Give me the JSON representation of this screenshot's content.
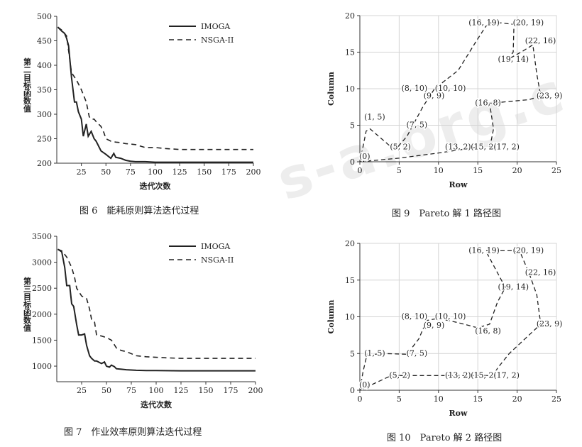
{
  "captions": {
    "fig6": "图 6　能耗原则算法迭代过程",
    "fig7": "图 7　作业效率原则算法迭代过程",
    "fig9": "图 9　Pareto 解 1 路径图",
    "fig10": "图 10　Pareto 解 2 路径图"
  },
  "watermark": "s-a.org.c",
  "colors": {
    "line": "#222222",
    "grid": "#d4d4d4",
    "axis": "#333333"
  },
  "chart_data": [
    {
      "id": "fig6",
      "type": "line",
      "xlabel": "迭代次数",
      "ylabel": "第二目标函数值",
      "xlim": [
        0,
        200
      ],
      "ylim": [
        200,
        500
      ],
      "xticks": [
        25,
        50,
        75,
        100,
        125,
        150,
        175,
        200
      ],
      "yticks": [
        200,
        250,
        300,
        350,
        400,
        450,
        500
      ],
      "grid": false,
      "legend_position": "top-right",
      "series": [
        {
          "name": "IMOGA",
          "style": "solid",
          "x": [
            1,
            5,
            8,
            10,
            12,
            15,
            18,
            20,
            22,
            25,
            27,
            30,
            32,
            35,
            38,
            40,
            45,
            50,
            55,
            58,
            60,
            65,
            70,
            75,
            80,
            90,
            100,
            125,
            150,
            175,
            200
          ],
          "y": [
            478,
            470,
            465,
            455,
            440,
            375,
            325,
            325,
            305,
            290,
            255,
            280,
            255,
            265,
            250,
            245,
            225,
            218,
            210,
            220,
            212,
            210,
            206,
            204,
            203,
            203,
            202,
            202,
            202,
            202,
            202
          ]
        },
        {
          "name": "NSGA-II",
          "style": "dashed",
          "x": [
            1,
            5,
            10,
            12,
            15,
            20,
            25,
            30,
            33,
            35,
            38,
            40,
            45,
            48,
            50,
            55,
            60,
            65,
            70,
            80,
            90,
            100,
            110,
            125,
            150,
            175,
            200
          ],
          "y": [
            478,
            472,
            460,
            430,
            385,
            370,
            350,
            325,
            295,
            290,
            290,
            285,
            275,
            262,
            250,
            245,
            243,
            242,
            240,
            238,
            232,
            232,
            230,
            228,
            228,
            228,
            228
          ]
        }
      ]
    },
    {
      "id": "fig7",
      "type": "line",
      "xlabel": "迭代次数",
      "ylabel": "第三目标函数值",
      "xlim": [
        0,
        200
      ],
      "ylim": [
        700,
        3500
      ],
      "xticks": [
        25,
        50,
        75,
        100,
        125,
        150,
        175,
        200
      ],
      "yticks": [
        1000,
        1500,
        2000,
        2500,
        3000,
        3500
      ],
      "grid": false,
      "legend_position": "top-right",
      "series": [
        {
          "name": "IMOGA",
          "style": "solid",
          "x": [
            1,
            5,
            8,
            10,
            13,
            15,
            17,
            20,
            22,
            25,
            28,
            30,
            33,
            35,
            38,
            40,
            45,
            48,
            50,
            53,
            55,
            58,
            60,
            65,
            70,
            80,
            90,
            100,
            125,
            150,
            175,
            200
          ],
          "y": [
            3250,
            3200,
            2900,
            2550,
            2550,
            2200,
            2150,
            1800,
            1600,
            1600,
            1620,
            1400,
            1200,
            1150,
            1100,
            1100,
            1050,
            1080,
            1000,
            980,
            1020,
            990,
            950,
            940,
            930,
            920,
            915,
            915,
            910,
            910,
            910,
            910
          ]
        },
        {
          "name": "NSGA-II",
          "style": "dashed",
          "x": [
            1,
            5,
            10,
            15,
            18,
            20,
            25,
            30,
            33,
            35,
            38,
            40,
            45,
            50,
            55,
            60,
            65,
            70,
            80,
            90,
            100,
            110,
            125,
            150,
            175,
            200
          ],
          "y": [
            3250,
            3220,
            3100,
            2900,
            2700,
            2500,
            2350,
            2300,
            2100,
            1900,
            1850,
            1600,
            1580,
            1550,
            1500,
            1350,
            1300,
            1280,
            1200,
            1180,
            1170,
            1160,
            1150,
            1150,
            1150,
            1150
          ]
        }
      ]
    },
    {
      "id": "fig9",
      "type": "scatter",
      "xlabel": "Row",
      "ylabel": "Column",
      "xlim": [
        0,
        25
      ],
      "ylim": [
        0,
        20
      ],
      "xticks": [
        0,
        5,
        10,
        15,
        20,
        25
      ],
      "yticks": [
        0,
        5,
        10,
        15,
        20
      ],
      "grid": true,
      "points": [
        {
          "label": "(0)",
          "x": 0,
          "y": 0
        },
        {
          "label": "(1, 5)",
          "x": 1,
          "y": 5
        },
        {
          "label": "(5, 2)",
          "x": 5,
          "y": 2
        },
        {
          "label": "(7, 5)",
          "x": 7,
          "y": 5
        },
        {
          "label": "(9, 9)",
          "x": 9,
          "y": 9
        },
        {
          "label": "(8, 10)",
          "x": 8,
          "y": 10
        },
        {
          "label": "(10, 10)",
          "x": 10,
          "y": 10
        },
        {
          "label": "(16, 19)",
          "x": 16,
          "y": 19
        },
        {
          "label": "(20, 19)",
          "x": 20,
          "y": 19
        },
        {
          "label": "(22, 16)",
          "x": 22,
          "y": 16
        },
        {
          "label": "(19, 14)",
          "x": 19,
          "y": 14
        },
        {
          "label": "(23, 9)",
          "x": 23,
          "y": 9
        },
        {
          "label": "(16, 8)",
          "x": 16,
          "y": 8
        },
        {
          "label": "(13, 2)",
          "x": 13,
          "y": 2
        },
        {
          "label": "(15, 2)",
          "x": 15,
          "y": 2
        },
        {
          "label": "(17, 2)",
          "x": 17,
          "y": 2
        }
      ],
      "paths": [
        [
          [
            0,
            0
          ],
          [
            0.3,
            1.5
          ],
          [
            0.8,
            4.2
          ],
          [
            1.3,
            4.5
          ],
          [
            4,
            2
          ],
          [
            4.8,
            2
          ],
          [
            6,
            3.5
          ],
          [
            8,
            7.5
          ],
          [
            9.5,
            10
          ],
          [
            12.5,
            12.5
          ],
          [
            14.8,
            16.5
          ],
          [
            16,
            18.5
          ],
          [
            16.5,
            19
          ],
          [
            18,
            19
          ],
          [
            19.6,
            18.8
          ],
          [
            19.5,
            15
          ],
          [
            18.8,
            14
          ],
          [
            20.5,
            15
          ],
          [
            22,
            16
          ],
          [
            22.5,
            12
          ],
          [
            23,
            9
          ],
          [
            21.5,
            8.5
          ],
          [
            18.5,
            8.2
          ],
          [
            16.5,
            8
          ],
          [
            17,
            4.5
          ],
          [
            16.5,
            1.8
          ]
        ],
        [
          [
            0,
            0
          ],
          [
            5,
            0.5
          ],
          [
            10,
            1.2
          ],
          [
            15,
            2
          ]
        ]
      ]
    },
    {
      "id": "fig10",
      "type": "scatter",
      "xlabel": "Row",
      "ylabel": "Column",
      "xlim": [
        0,
        25
      ],
      "ylim": [
        0,
        20
      ],
      "xticks": [
        0,
        5,
        10,
        15,
        20,
        25
      ],
      "yticks": [
        0,
        5,
        10,
        15,
        20
      ],
      "grid": true,
      "points": [
        {
          "label": "(0)",
          "x": 0,
          "y": 0
        },
        {
          "label": "(1, 5)",
          "x": 1,
          "y": 5
        },
        {
          "label": "(7, 5)",
          "x": 7,
          "y": 5
        },
        {
          "label": "(5, 2)",
          "x": 5,
          "y": 2
        },
        {
          "label": "(8, 10)",
          "x": 8,
          "y": 10
        },
        {
          "label": "(10, 10)",
          "x": 10,
          "y": 10
        },
        {
          "label": "(9, 9)",
          "x": 9,
          "y": 9
        },
        {
          "label": "(16, 8)",
          "x": 16,
          "y": 8
        },
        {
          "label": "(16, 19)",
          "x": 16,
          "y": 19
        },
        {
          "label": "(20, 19)",
          "x": 20,
          "y": 19
        },
        {
          "label": "(22, 16)",
          "x": 22,
          "y": 16
        },
        {
          "label": "(19, 14)",
          "x": 19,
          "y": 14
        },
        {
          "label": "(23, 9)",
          "x": 23,
          "y": 9
        },
        {
          "label": "(13, 2)",
          "x": 13,
          "y": 2
        },
        {
          "label": "(15, 2)",
          "x": 15,
          "y": 2
        },
        {
          "label": "(17, 2)",
          "x": 17,
          "y": 2
        }
      ],
      "paths": [
        [
          [
            0,
            0
          ],
          [
            0.4,
            2.5
          ],
          [
            0.9,
            4.8
          ],
          [
            3,
            5
          ],
          [
            6,
            4.9
          ],
          [
            7.5,
            7
          ],
          [
            8.5,
            9.5
          ],
          [
            10,
            9.8
          ],
          [
            12.5,
            9.2
          ],
          [
            15,
            8.5
          ],
          [
            16.5,
            9
          ],
          [
            17.5,
            12
          ],
          [
            18.5,
            14
          ],
          [
            17,
            17
          ],
          [
            16,
            19
          ],
          [
            17,
            19
          ],
          [
            19.5,
            19
          ],
          [
            20.5,
            18.5
          ],
          [
            21.5,
            16
          ],
          [
            22.5,
            13
          ],
          [
            23,
            9
          ],
          [
            21,
            7
          ],
          [
            19,
            5
          ],
          [
            17.5,
            3
          ],
          [
            17,
            2
          ],
          [
            15.5,
            2
          ],
          [
            12,
            2
          ],
          [
            9,
            2
          ],
          [
            6,
            2
          ],
          [
            4,
            2
          ],
          [
            2,
            1
          ],
          [
            0,
            0
          ]
        ]
      ]
    }
  ]
}
